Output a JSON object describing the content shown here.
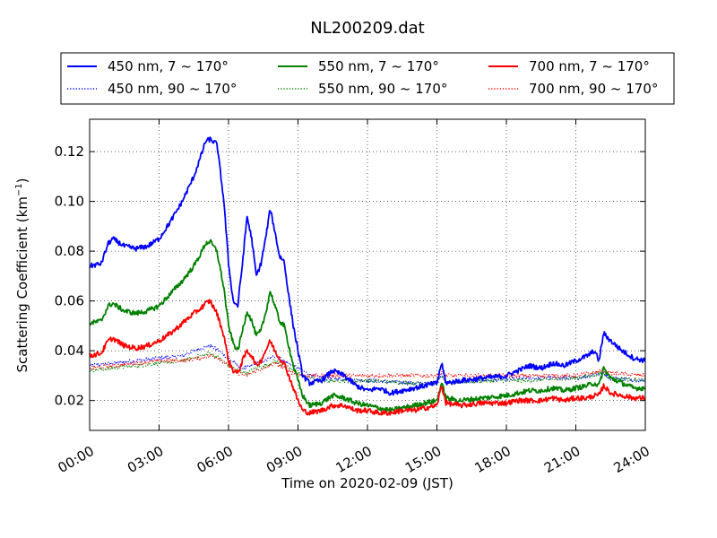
{
  "chart_data": {
    "type": "line",
    "title": "NL200209.dat",
    "xlabel": "Time on 2020-02-09 (JST)",
    "ylabel_main": "Scattering Coefficient (km",
    "ylabel_sup": "−1",
    "ylabel_tail": ")",
    "xlim": [
      0,
      24
    ],
    "ylim": [
      0.008,
      0.133
    ],
    "x_ticks": [
      0,
      3,
      6,
      9,
      12,
      15,
      18,
      21,
      24
    ],
    "x_tick_labels": [
      "00:00",
      "03:00",
      "06:00",
      "09:00",
      "12:00",
      "15:00",
      "18:00",
      "21:00",
      "24:00"
    ],
    "y_ticks": [
      0.02,
      0.04,
      0.06,
      0.08,
      0.1,
      0.12
    ],
    "y_tick_labels": [
      "0.02",
      "0.04",
      "0.06",
      "0.08",
      "0.10",
      "0.12"
    ],
    "grid": true,
    "legend_position": "top",
    "series": [
      {
        "name": "450 nm, 7 ~ 170°",
        "color": "#0000ff",
        "style": "solid",
        "x": [
          0,
          0.5,
          0.8,
          1,
          1.5,
          2,
          2.5,
          3,
          3.5,
          4,
          4.5,
          4.8,
          5,
          5.2,
          5.5,
          5.8,
          6,
          6.2,
          6.4,
          6.6,
          6.8,
          7,
          7.2,
          7.4,
          7.6,
          7.8,
          8,
          8.2,
          8.4,
          8.6,
          8.8,
          9,
          9.2,
          9.5,
          10,
          10.5,
          11,
          11.5,
          12,
          12.5,
          13,
          13.5,
          14,
          14.5,
          15,
          15.2,
          15.4,
          16,
          17,
          18,
          18.5,
          19,
          19.5,
          20,
          20.5,
          21,
          21.5,
          21.8,
          22,
          22.2,
          22.5,
          23,
          23.5,
          24
        ],
        "y": [
          0.074,
          0.075,
          0.083,
          0.085,
          0.082,
          0.081,
          0.082,
          0.085,
          0.092,
          0.1,
          0.11,
          0.118,
          0.124,
          0.125,
          0.123,
          0.1,
          0.075,
          0.06,
          0.058,
          0.075,
          0.094,
          0.085,
          0.07,
          0.075,
          0.085,
          0.097,
          0.088,
          0.078,
          0.076,
          0.062,
          0.05,
          0.04,
          0.03,
          0.027,
          0.028,
          0.032,
          0.03,
          0.026,
          0.024,
          0.025,
          0.023,
          0.024,
          0.025,
          0.026,
          0.027,
          0.035,
          0.027,
          0.028,
          0.029,
          0.03,
          0.032,
          0.034,
          0.033,
          0.035,
          0.034,
          0.036,
          0.038,
          0.04,
          0.036,
          0.047,
          0.044,
          0.04,
          0.037,
          0.036
        ]
      },
      {
        "name": "450 nm, 90 ~ 170°",
        "color": "#0000ff",
        "style": "dotted",
        "x": [
          0,
          1,
          2,
          3,
          4,
          4.8,
          5.2,
          5.6,
          6,
          6.4,
          6.8,
          7.2,
          7.6,
          8,
          8.4,
          8.8,
          9.2,
          9.6,
          10,
          12,
          14,
          15,
          15.2,
          15.4,
          17,
          19,
          21,
          22.2,
          22.5,
          24
        ],
        "y": [
          0.034,
          0.035,
          0.036,
          0.037,
          0.038,
          0.041,
          0.042,
          0.04,
          0.037,
          0.034,
          0.033,
          0.035,
          0.036,
          0.038,
          0.036,
          0.034,
          0.032,
          0.03,
          0.029,
          0.028,
          0.027,
          0.027,
          0.031,
          0.027,
          0.028,
          0.029,
          0.029,
          0.031,
          0.029,
          0.028
        ]
      },
      {
        "name": "550 nm, 7 ~ 170°",
        "color": "#008000",
        "style": "solid",
        "x": [
          0,
          0.5,
          0.8,
          1,
          1.5,
          2,
          2.5,
          3,
          3.5,
          4,
          4.5,
          4.8,
          5,
          5.2,
          5.5,
          5.8,
          6,
          6.2,
          6.4,
          6.6,
          6.8,
          7,
          7.2,
          7.4,
          7.6,
          7.8,
          8,
          8.2,
          8.4,
          8.6,
          8.8,
          9,
          9.2,
          9.5,
          10,
          10.5,
          11,
          11.5,
          12,
          12.5,
          13,
          13.5,
          14,
          14.5,
          15,
          15.2,
          15.4,
          16,
          17,
          18,
          18.5,
          19,
          19.5,
          20,
          20.5,
          21,
          21.5,
          21.8,
          22,
          22.2,
          22.5,
          23,
          23.5,
          24
        ],
        "y": [
          0.051,
          0.052,
          0.058,
          0.059,
          0.056,
          0.055,
          0.056,
          0.058,
          0.063,
          0.068,
          0.074,
          0.079,
          0.083,
          0.084,
          0.08,
          0.065,
          0.05,
          0.043,
          0.04,
          0.048,
          0.056,
          0.052,
          0.046,
          0.048,
          0.055,
          0.064,
          0.058,
          0.052,
          0.05,
          0.042,
          0.034,
          0.028,
          0.022,
          0.018,
          0.019,
          0.022,
          0.021,
          0.019,
          0.018,
          0.017,
          0.016,
          0.017,
          0.018,
          0.019,
          0.02,
          0.027,
          0.021,
          0.02,
          0.021,
          0.022,
          0.023,
          0.024,
          0.024,
          0.025,
          0.024,
          0.025,
          0.026,
          0.027,
          0.026,
          0.033,
          0.029,
          0.027,
          0.025,
          0.025
        ]
      },
      {
        "name": "550 nm, 90 ~ 170°",
        "color": "#008000",
        "style": "dotted",
        "x": [
          0,
          1,
          2,
          3,
          4,
          4.8,
          5.2,
          5.6,
          6,
          6.4,
          6.8,
          7.2,
          7.6,
          8,
          8.4,
          8.8,
          9.2,
          9.6,
          10,
          12,
          14,
          15,
          15.2,
          15.4,
          17,
          19,
          21,
          22.2,
          22.5,
          24
        ],
        "y": [
          0.032,
          0.033,
          0.034,
          0.035,
          0.036,
          0.038,
          0.039,
          0.037,
          0.034,
          0.032,
          0.031,
          0.033,
          0.034,
          0.036,
          0.034,
          0.032,
          0.03,
          0.029,
          0.028,
          0.028,
          0.027,
          0.027,
          0.03,
          0.027,
          0.028,
          0.028,
          0.029,
          0.031,
          0.029,
          0.028
        ]
      },
      {
        "name": "700 nm, 7 ~ 170°",
        "color": "#ff0000",
        "style": "solid",
        "x": [
          0,
          0.5,
          0.8,
          1,
          1.5,
          2,
          2.5,
          3,
          3.5,
          4,
          4.5,
          4.8,
          5,
          5.2,
          5.5,
          5.8,
          6,
          6.2,
          6.4,
          6.6,
          6.8,
          7,
          7.2,
          7.4,
          7.6,
          7.8,
          8,
          8.2,
          8.4,
          8.6,
          8.8,
          9,
          9.2,
          9.5,
          10,
          10.5,
          11,
          11.5,
          12,
          12.5,
          13,
          13.5,
          14,
          14.5,
          15,
          15.2,
          15.4,
          16,
          17,
          18,
          18.5,
          19,
          19.5,
          20,
          20.5,
          21,
          21.5,
          21.8,
          22,
          22.2,
          22.5,
          23,
          23.5,
          24
        ],
        "y": [
          0.038,
          0.039,
          0.044,
          0.045,
          0.042,
          0.041,
          0.042,
          0.044,
          0.047,
          0.051,
          0.055,
          0.057,
          0.059,
          0.06,
          0.055,
          0.046,
          0.036,
          0.032,
          0.031,
          0.036,
          0.04,
          0.038,
          0.034,
          0.036,
          0.04,
          0.044,
          0.04,
          0.037,
          0.035,
          0.03,
          0.025,
          0.02,
          0.016,
          0.015,
          0.016,
          0.018,
          0.018,
          0.016,
          0.016,
          0.015,
          0.015,
          0.016,
          0.016,
          0.017,
          0.018,
          0.026,
          0.019,
          0.018,
          0.019,
          0.019,
          0.02,
          0.02,
          0.02,
          0.021,
          0.02,
          0.021,
          0.021,
          0.022,
          0.022,
          0.026,
          0.023,
          0.022,
          0.021,
          0.021
        ]
      },
      {
        "name": "700 nm, 90 ~ 170°",
        "color": "#ff0000",
        "style": "dotted",
        "x": [
          0,
          1,
          2,
          3,
          4,
          4.8,
          5.2,
          5.6,
          6,
          6.4,
          6.8,
          7.2,
          7.6,
          8,
          8.4,
          8.8,
          9.2,
          9.6,
          10,
          12,
          14,
          15,
          15.2,
          15.4,
          17,
          19,
          21,
          22.2,
          22.5,
          24
        ],
        "y": [
          0.033,
          0.034,
          0.035,
          0.036,
          0.036,
          0.037,
          0.038,
          0.037,
          0.034,
          0.031,
          0.03,
          0.032,
          0.033,
          0.035,
          0.033,
          0.031,
          0.03,
          0.03,
          0.03,
          0.03,
          0.03,
          0.03,
          0.031,
          0.03,
          0.03,
          0.03,
          0.03,
          0.032,
          0.031,
          0.03
        ]
      }
    ]
  }
}
